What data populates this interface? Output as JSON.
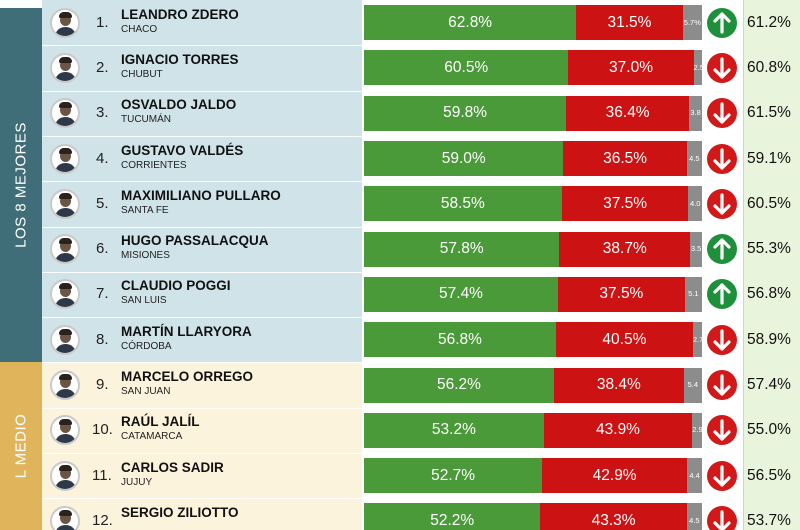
{
  "groups": [
    {
      "label": "LOS 8 MEJORES",
      "band_color": "#3f6e78",
      "row_bg": "#cfe3e8",
      "start": 0,
      "end": 7
    },
    {
      "label": "L MEDIO",
      "band_color": "#e0b45a",
      "row_bg": "#fbf3dc",
      "start": 8,
      "end": 11
    }
  ],
  "colors": {
    "approve": "#4b9a3a",
    "disapprove": "#cc1212",
    "unknown": "#8c8c8c",
    "up": "#1e8f3a",
    "down": "#d11919",
    "prev_bg": "#e8f4dc"
  },
  "chart_data": {
    "type": "bar",
    "stacked": true,
    "orientation": "horizontal",
    "series_order": [
      "approve",
      "disapprove",
      "unknown"
    ],
    "rows": [
      {
        "rank": "1.",
        "name": "LEANDRO ZDERO",
        "province": "CHACO",
        "approve": 62.8,
        "disapprove": 31.5,
        "unknown": 5.7,
        "approve_label": "62.8%",
        "disapprove_label": "31.5%",
        "unknown_label": "5.7%",
        "trend": "up",
        "previous": "61.2%"
      },
      {
        "rank": "2.",
        "name": "IGNACIO TORRES",
        "province": "CHUBUT",
        "approve": 60.5,
        "disapprove": 37.0,
        "unknown": 2.5,
        "approve_label": "60.5%",
        "disapprove_label": "37.0%",
        "unknown_label": "2.5",
        "trend": "down",
        "previous": "60.8%"
      },
      {
        "rank": "3.",
        "name": "OSVALDO JALDO",
        "province": "TUCUMÁN",
        "approve": 59.8,
        "disapprove": 36.4,
        "unknown": 3.8,
        "approve_label": "59.8%",
        "disapprove_label": "36.4%",
        "unknown_label": "3.8",
        "trend": "down",
        "previous": "61.5%"
      },
      {
        "rank": "4.",
        "name": "GUSTAVO VALDÉS",
        "province": "CORRIENTES",
        "approve": 59.0,
        "disapprove": 36.5,
        "unknown": 4.5,
        "approve_label": "59.0%",
        "disapprove_label": "36.5%",
        "unknown_label": "4.5",
        "trend": "down",
        "previous": "59.1%"
      },
      {
        "rank": "5.",
        "name": "MAXIMILIANO PULLARO",
        "province": "SANTA FE",
        "approve": 58.5,
        "disapprove": 37.5,
        "unknown": 4.0,
        "approve_label": "58.5%",
        "disapprove_label": "37.5%",
        "unknown_label": "4.0",
        "trend": "down",
        "previous": "60.5%"
      },
      {
        "rank": "6.",
        "name": "HUGO PASSALACQUA",
        "province": "MISIONES",
        "approve": 57.8,
        "disapprove": 38.7,
        "unknown": 3.5,
        "approve_label": "57.8%",
        "disapprove_label": "38.7%",
        "unknown_label": "3.5",
        "trend": "up",
        "previous": "55.3%"
      },
      {
        "rank": "7.",
        "name": "CLAUDIO POGGI",
        "province": "SAN LUIS",
        "approve": 57.4,
        "disapprove": 37.5,
        "unknown": 5.1,
        "approve_label": "57.4%",
        "disapprove_label": "37.5%",
        "unknown_label": "5.1",
        "trend": "up",
        "previous": "56.8%"
      },
      {
        "rank": "8.",
        "name": "MARTÍN LLARYORA",
        "province": "CÓRDOBA",
        "approve": 56.8,
        "disapprove": 40.5,
        "unknown": 2.7,
        "approve_label": "56.8%",
        "disapprove_label": "40.5%",
        "unknown_label": "2.7",
        "trend": "down",
        "previous": "58.9%"
      },
      {
        "rank": "9.",
        "name": "MARCELO ORREGO",
        "province": "SAN JUAN",
        "approve": 56.2,
        "disapprove": 38.4,
        "unknown": 5.4,
        "approve_label": "56.2%",
        "disapprove_label": "38.4%",
        "unknown_label": "5.4",
        "trend": "down",
        "previous": "57.4%"
      },
      {
        "rank": "10.",
        "name": "RAÚL JALÍL",
        "province": "CATAMARCA",
        "approve": 53.2,
        "disapprove": 43.9,
        "unknown": 2.9,
        "approve_label": "53.2%",
        "disapprove_label": "43.9%",
        "unknown_label": "2.9",
        "trend": "down",
        "previous": "55.0%"
      },
      {
        "rank": "11.",
        "name": "CARLOS SADIR",
        "province": "JUJUY",
        "approve": 52.7,
        "disapprove": 42.9,
        "unknown": 4.4,
        "approve_label": "52.7%",
        "disapprove_label": "42.9%",
        "unknown_label": "4.4",
        "trend": "down",
        "previous": "56.5%"
      },
      {
        "rank": "12.",
        "name": "SERGIO ZILIOTTO",
        "province": "",
        "approve": 52.2,
        "disapprove": 43.3,
        "unknown": 4.5,
        "approve_label": "52.2%",
        "disapprove_label": "43.3%",
        "unknown_label": "4.5",
        "trend": "down",
        "previous": "53.7%"
      }
    ]
  }
}
